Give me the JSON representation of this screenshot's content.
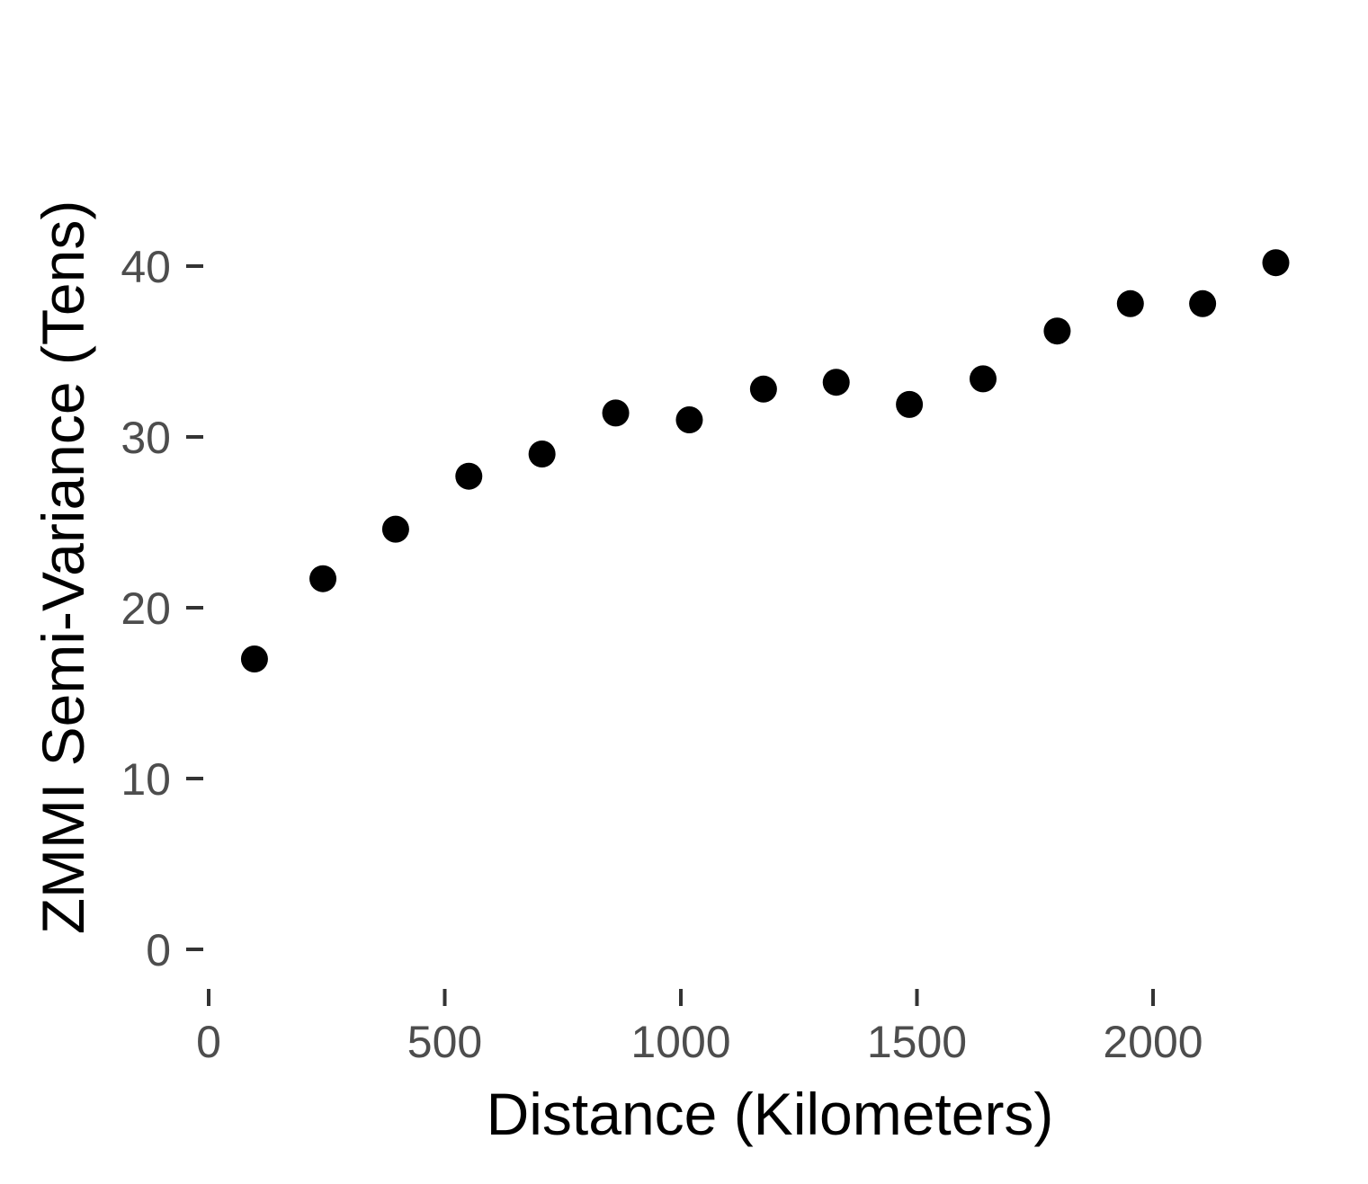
{
  "chart_data": {
    "type": "scatter",
    "title": "",
    "xlabel": "Distance (Kilometers)",
    "ylabel": "ZMMI Semi-Variance (Tens)",
    "xlim": [
      0,
      2300
    ],
    "ylim": [
      0,
      43
    ],
    "x_ticks": [
      0,
      500,
      1000,
      1500,
      2000
    ],
    "y_ticks": [
      0,
      10,
      20,
      30,
      40
    ],
    "x_tick_labels": [
      "0",
      "500",
      "1000",
      "1500",
      "2000"
    ],
    "y_tick_labels": [
      "0",
      "10",
      "20",
      "30",
      "40"
    ],
    "grid": false,
    "legend": "none",
    "point_color": "#000000",
    "series": [
      {
        "x": [
          97,
          242,
          396,
          551,
          706,
          862,
          1018,
          1175,
          1329,
          1484,
          1640,
          1797,
          1952,
          2105,
          2260
        ],
        "y": [
          17.0,
          21.7,
          24.6,
          27.7,
          29.0,
          31.4,
          31.0,
          32.8,
          33.2,
          31.9,
          33.4,
          36.2,
          37.8,
          37.8,
          40.2
        ]
      }
    ]
  }
}
